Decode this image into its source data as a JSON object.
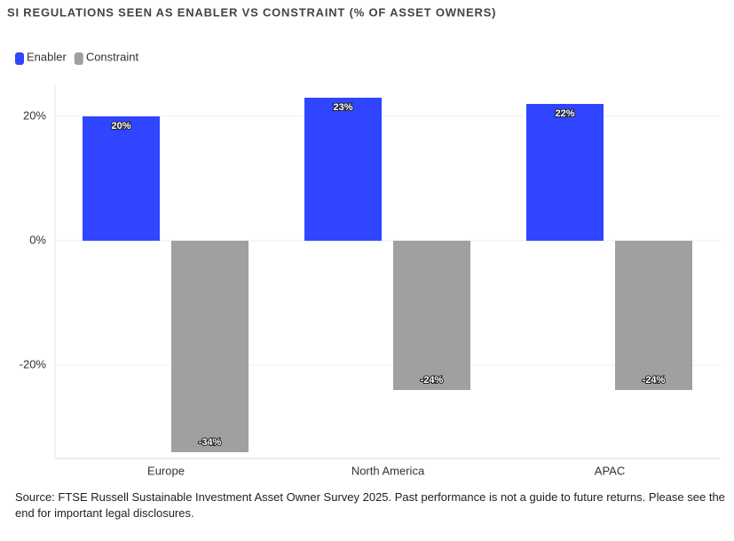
{
  "chart_data": {
    "type": "bar",
    "title": "SI REGULATIONS SEEN AS ENABLER VS CONSTRAINT (% OF ASSET OWNERS)",
    "categories": [
      "Europe",
      "North America",
      "APAC"
    ],
    "series": [
      {
        "name": "Enabler",
        "color": "#2f45ff",
        "values": [
          20,
          23,
          22
        ],
        "value_labels": [
          "20%",
          "23%",
          "22%"
        ]
      },
      {
        "name": "Constraint",
        "color": "#a0a0a0",
        "values": [
          -34,
          -24,
          -24
        ],
        "value_labels": [
          "-34%",
          "-24%",
          "-24%"
        ]
      }
    ],
    "ylim": [
      -35,
      25
    ],
    "yticks": [
      {
        "value": -20,
        "label": "-20%"
      },
      {
        "value": 0,
        "label": "0%"
      },
      {
        "value": 20,
        "label": "20%"
      }
    ],
    "grid": true,
    "legend": "top-left",
    "source": "Source: FTSE Russell Sustainable Investment Asset Owner Survey 2025. Past performance is not a guide to future returns. Please see the end for important legal disclosures."
  }
}
